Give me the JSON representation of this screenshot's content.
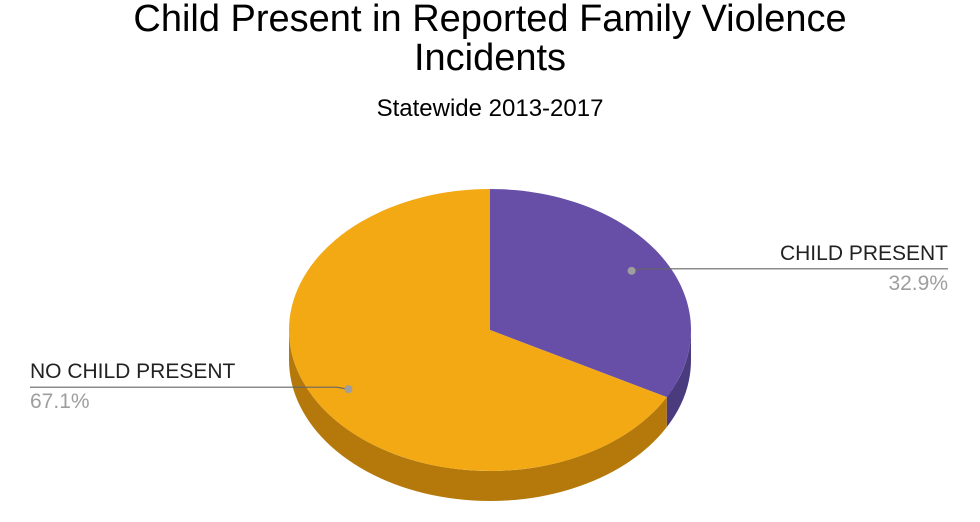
{
  "chart_data": {
    "type": "pie",
    "title_lines": [
      "Child Present in Reported Family Violence",
      "Incidents"
    ],
    "subtitle": "Statewide 2013-2017",
    "slices": [
      {
        "label": "CHILD PRESENT",
        "value": 32.9,
        "value_label": "32.9%",
        "color": "#674fa8",
        "side_color": "#4a3a7e",
        "label_side": "right"
      },
      {
        "label": "NO CHILD PRESENT",
        "value": 67.1,
        "value_label": "67.1%",
        "color": "#f3a914",
        "side_color": "#b5790b",
        "label_side": "left"
      }
    ],
    "style": "3d"
  }
}
